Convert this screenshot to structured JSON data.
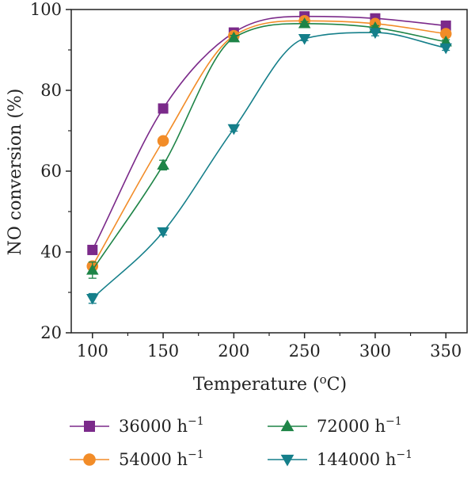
{
  "chart_data": {
    "type": "line",
    "title": "",
    "xlabel": "Temperature (°C)",
    "xlabel_main": "Temperature (",
    "xlabel_unit": "o",
    "xlabel_unit_tail": "C)",
    "ylabel": "NO conversion (%)",
    "xlim": [
      85,
      365
    ],
    "ylim": [
      20,
      100
    ],
    "x_ticks": [
      100,
      150,
      200,
      250,
      300,
      350
    ],
    "y_ticks": [
      20,
      40,
      60,
      80,
      100
    ],
    "grid": false,
    "legend_position": "bottom",
    "x": [
      100,
      150,
      200,
      250,
      300,
      350
    ],
    "series": [
      {
        "name": "36000 h⁻¹",
        "label_main": "36000 h",
        "label_sup": "−1",
        "values": [
          40.5,
          75.5,
          94.3,
          98.3,
          97.8,
          96.0
        ],
        "errors": [
          0.8,
          0.7,
          0.5,
          0.4,
          0.4,
          0.4
        ],
        "color": "#7b2a8a",
        "marker": "square"
      },
      {
        "name": "54000 h⁻¹",
        "label_main": "54000 h",
        "label_sup": "−1",
        "values": [
          36.5,
          67.5,
          93.5,
          97.2,
          96.5,
          94.0
        ],
        "errors": [
          0.8,
          0.7,
          0.5,
          0.4,
          0.4,
          0.4
        ],
        "color": "#f28c28",
        "marker": "circle"
      },
      {
        "name": "72000 h⁻¹",
        "label_main": "72000 h",
        "label_sup": "−1",
        "values": [
          35.5,
          61.5,
          93.0,
          96.5,
          95.5,
          92.0
        ],
        "errors": [
          2.0,
          1.2,
          0.6,
          0.5,
          0.5,
          0.5
        ],
        "color": "#1e8447",
        "marker": "triangle-up"
      },
      {
        "name": "144000 h⁻¹",
        "label_main": "144000 h",
        "label_sup": "−1",
        "values": [
          28.5,
          45.0,
          70.5,
          92.8,
          94.3,
          90.5
        ],
        "errors": [
          1.2,
          0.8,
          0.6,
          0.5,
          0.8,
          0.6
        ],
        "color": "#157f8a",
        "marker": "triangle-down"
      }
    ]
  }
}
